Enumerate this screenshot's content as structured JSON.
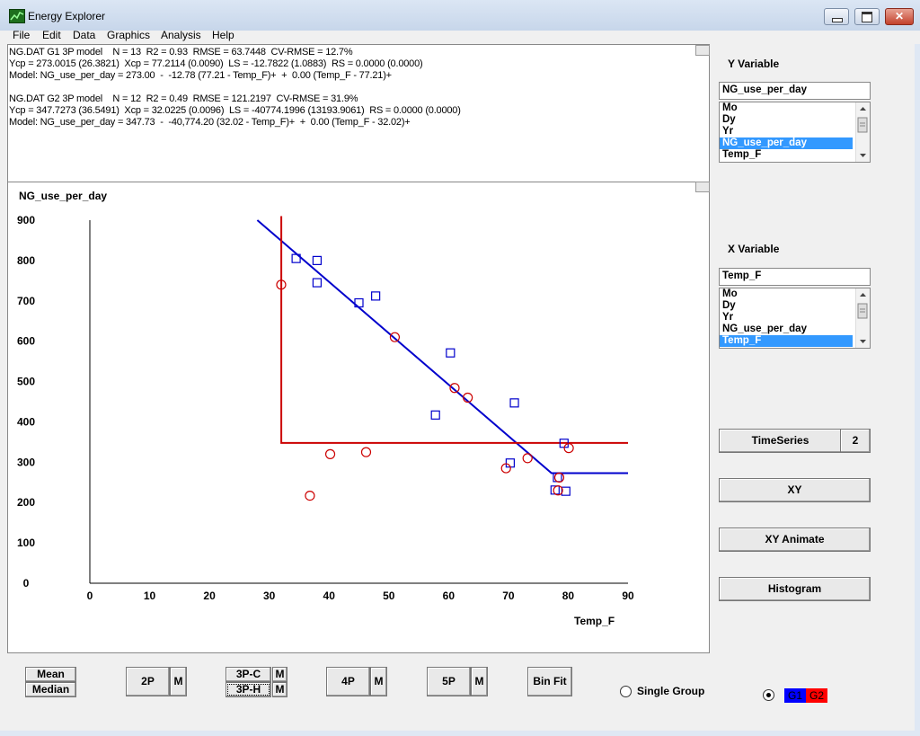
{
  "window": {
    "title": "Energy Explorer",
    "close_glyph": "✕"
  },
  "menu": [
    "File",
    "Edit",
    "Data",
    "Graphics",
    "Analysis",
    "Help"
  ],
  "stats": {
    "lines": [
      "NG.DAT G1 3P model    N = 13  R2 = 0.93  RMSE = 63.7448  CV-RMSE = 12.7%",
      "Ycp = 273.0015 (26.3821)  Xcp = 77.2114 (0.0090)  LS = -12.7822 (1.0883)  RS = 0.0000 (0.0000)",
      "Model: NG_use_per_day = 273.00  -  -12.78 (77.21 - Temp_F)+  +  0.00 (Temp_F - 77.21)+",
      "",
      "NG.DAT G2 3P model    N = 12  R2 = 0.49  RMSE = 121.2197  CV-RMSE = 31.9%",
      "Ycp = 347.7273 (36.5491)  Xcp = 32.0225 (0.0096)  LS = -40774.1996 (13193.9061)  RS = 0.0000 (0.0000)",
      "Model: NG_use_per_day = 347.73  -  -40,774.20 (32.02 - Temp_F)+  +  0.00 (Temp_F - 32.02)+"
    ]
  },
  "chart_data": {
    "type": "scatter",
    "ylabel": "NG_use_per_day",
    "xlabel": "Temp_F",
    "xlim": [
      0,
      90
    ],
    "ylim": [
      0,
      900
    ],
    "x_ticks": [
      0,
      10,
      20,
      30,
      40,
      50,
      60,
      70,
      80,
      90
    ],
    "y_ticks": [
      0,
      100,
      200,
      300,
      400,
      500,
      600,
      700,
      800,
      900
    ],
    "grid": false,
    "series": [
      {
        "name": "G1",
        "marker": "square",
        "color": "#0000cc",
        "points": [
          [
            34.5,
            805
          ],
          [
            38,
            800
          ],
          [
            38,
            745
          ],
          [
            45,
            695
          ],
          [
            47.8,
            712
          ],
          [
            57.8,
            417
          ],
          [
            60.3,
            571
          ],
          [
            70.3,
            298
          ],
          [
            71,
            447
          ],
          [
            77.8,
            231
          ],
          [
            78.2,
            262
          ],
          [
            79.6,
            228
          ],
          [
            79.3,
            347
          ]
        ],
        "fit": [
          [
            28,
            900
          ],
          [
            77.21,
            273
          ],
          [
            90,
            273
          ]
        ]
      },
      {
        "name": "G2",
        "marker": "circle",
        "color": "#cc0000",
        "points": [
          [
            32,
            740
          ],
          [
            36.8,
            217
          ],
          [
            40.2,
            320
          ],
          [
            46.2,
            325
          ],
          [
            51,
            610
          ],
          [
            61,
            484
          ],
          [
            63.2,
            460
          ],
          [
            69.6,
            285
          ],
          [
            73.2,
            310
          ],
          [
            78.5,
            262
          ],
          [
            78.3,
            230
          ],
          [
            80.1,
            335
          ]
        ],
        "fit": [
          [
            32.02,
            910
          ],
          [
            32.02,
            347.73
          ],
          [
            90,
            347.73
          ]
        ]
      }
    ]
  },
  "right_panel": {
    "y_variable": {
      "label": "Y Variable",
      "value": "NG_use_per_day",
      "options": [
        "Mo",
        "Dy",
        "Yr",
        "NG_use_per_day",
        "Temp_F"
      ],
      "selected": 3
    },
    "x_variable": {
      "label": "X Variable",
      "value": "Temp_F",
      "options": [
        "Mo",
        "Dy",
        "Yr",
        "NG_use_per_day",
        "Temp_F"
      ],
      "selected": 4
    },
    "timeseries_label": "TimeSeries",
    "timeseries_count": "2",
    "xy_label": "XY",
    "xy_animate_label": "XY Animate",
    "histogram_label": "Histogram"
  },
  "bottom": {
    "mean_label": "Mean",
    "median_label": "Median",
    "p2_label": "2P",
    "m_label": "M",
    "p3c_label": "3P-C",
    "p3h_label": "3P-H",
    "p4_label": "4P",
    "p5_label": "5P",
    "binfit_label": "Bin Fit",
    "single_group_label": "Single Group",
    "g1_label": "G1",
    "g2_label": "G2",
    "g1_color": "#0000ff",
    "g2_color": "#ff0000"
  }
}
